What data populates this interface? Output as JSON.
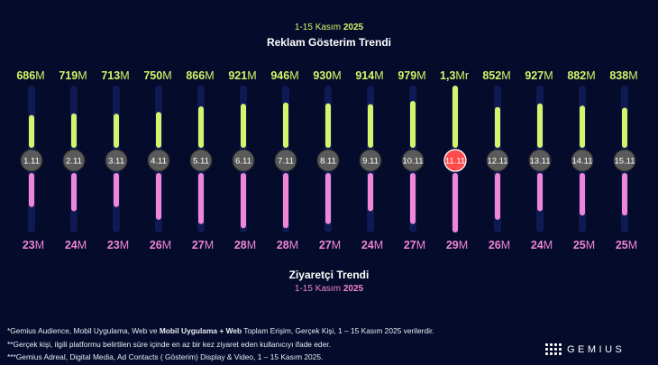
{
  "header": {
    "date_prefix": "1-15 Kasım",
    "date_year": "2025",
    "title": "Reklam Gösterim Trendi"
  },
  "footer_header": {
    "title": "Ziyaretçi Trendi",
    "date_prefix": "1-15 Kasım",
    "date_year": "2025"
  },
  "chart_data": {
    "type": "bar",
    "title": "Reklam Gösterim Trendi / Ziyaretçi Trendi",
    "categories": [
      "1.11",
      "2.11",
      "3.11",
      "4.11",
      "5.11",
      "6.11",
      "7.11",
      "8.11",
      "9.11",
      "10.11",
      "11.11",
      "12.11",
      "13.11",
      "14.11",
      "15.11"
    ],
    "highlight_category": "11.11",
    "series": [
      {
        "name": "Reklam Gösterim",
        "unit_hint": "M",
        "values": [
          686,
          719,
          713,
          750,
          866,
          921,
          946,
          930,
          914,
          979,
          1300,
          852,
          927,
          882,
          838
        ],
        "value_labels": [
          {
            "num": "686",
            "unit": "M"
          },
          {
            "num": "719",
            "unit": "M"
          },
          {
            "num": "713",
            "unit": "M"
          },
          {
            "num": "750",
            "unit": "M"
          },
          {
            "num": "866",
            "unit": "M"
          },
          {
            "num": "921",
            "unit": "M"
          },
          {
            "num": "946",
            "unit": "M"
          },
          {
            "num": "930",
            "unit": "M"
          },
          {
            "num": "914",
            "unit": "M"
          },
          {
            "num": "979",
            "unit": "M"
          },
          {
            "num": "1,3",
            "unit": "Mr"
          },
          {
            "num": "852",
            "unit": "M"
          },
          {
            "num": "927",
            "unit": "M"
          },
          {
            "num": "882",
            "unit": "M"
          },
          {
            "num": "838",
            "unit": "M"
          }
        ],
        "color": "#d4f56a"
      },
      {
        "name": "Ziyaretçi",
        "unit_hint": "M",
        "values": [
          23,
          24,
          23,
          26,
          27,
          28,
          28,
          27,
          24,
          27,
          29,
          26,
          24,
          25,
          25
        ],
        "value_labels": [
          {
            "num": "23",
            "unit": "M"
          },
          {
            "num": "24",
            "unit": "M"
          },
          {
            "num": "23",
            "unit": "M"
          },
          {
            "num": "26",
            "unit": "M"
          },
          {
            "num": "27",
            "unit": "M"
          },
          {
            "num": "28",
            "unit": "M"
          },
          {
            "num": "28",
            "unit": "M"
          },
          {
            "num": "27",
            "unit": "M"
          },
          {
            "num": "24",
            "unit": "M"
          },
          {
            "num": "27",
            "unit": "M"
          },
          {
            "num": "29",
            "unit": "M"
          },
          {
            "num": "26",
            "unit": "M"
          },
          {
            "num": "24",
            "unit": "M"
          },
          {
            "num": "25",
            "unit": "M"
          },
          {
            "num": "25",
            "unit": "M"
          }
        ],
        "color": "#ef86d6"
      }
    ],
    "ylim_top": [
      0,
      1300
    ],
    "ylim_bottom": [
      0,
      29
    ]
  },
  "colors": {
    "background": "#050b2a",
    "track": "#0f1a55",
    "lime": "#d4f56a",
    "pink": "#ef86d6",
    "date_circle": "#5a5a5a",
    "highlight_circle": "#ff4b4b"
  },
  "notes": {
    "line1_a": "*Gemius Audience, Mobil Uygulama, Web ve ",
    "line1_bold": "Mobil Uygulama + Web",
    "line1_b": " Toplam Erişim, Gerçek Kişi, 1 – 15 Kasım  2025 verilerdir.",
    "line2": "**Gerçek kişi, ilgili platformu belirtilen süre içinde en az bir kez ziyaret eden kullanıcıyı ifade eder.",
    "line3": "***Gemius Adreal, Digital Media, Ad Contacts ( Gösterim) Display & Video, 1 – 15 Kasım 2025."
  },
  "logo": {
    "text": "GEMIUS"
  }
}
